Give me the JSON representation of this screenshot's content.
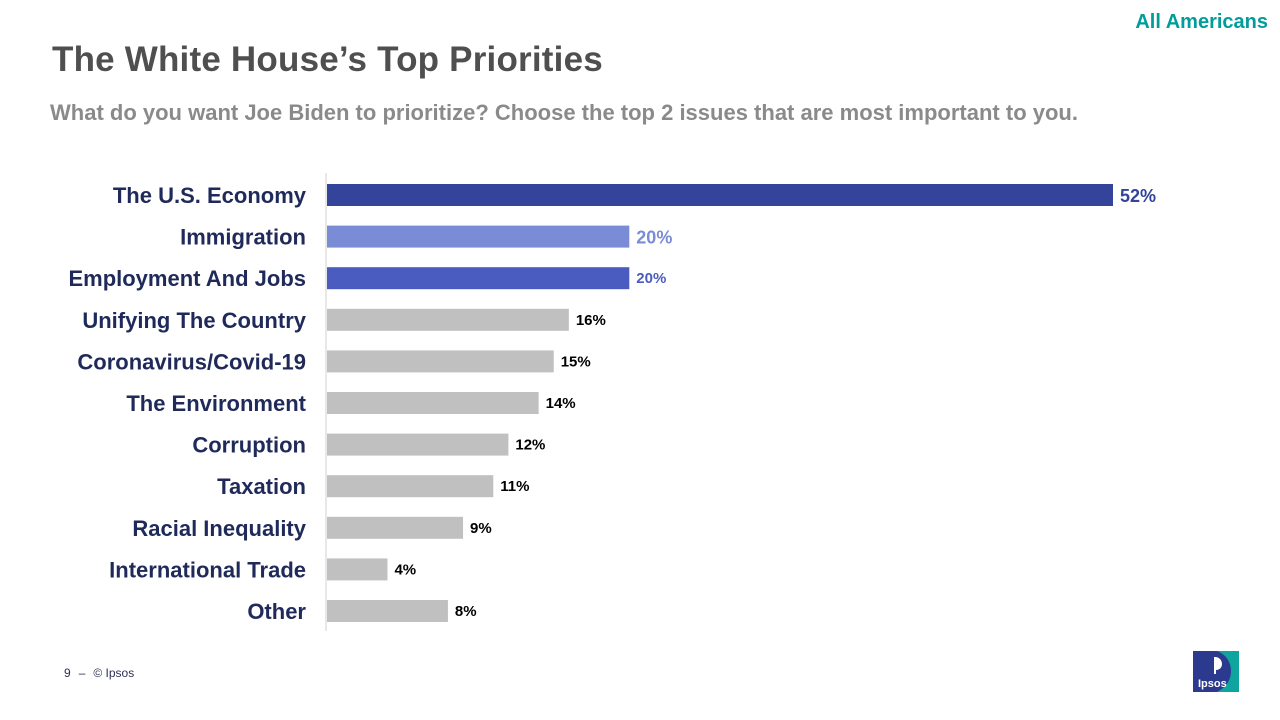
{
  "header": {
    "segment": "All Americans",
    "title": "The White House’s Top Priorities",
    "subtitle": "What do you want Joe Biden to prioritize? Choose the top 2 issues that are most important to you."
  },
  "chart_data": {
    "type": "bar",
    "orientation": "horizontal",
    "title": "",
    "xlabel": "",
    "ylabel": "",
    "xlim": [
      0,
      52
    ],
    "grid": false,
    "legend": "none",
    "categories": [
      "The U.S. Economy",
      "Immigration",
      "Employment And Jobs",
      "Unifying The Country",
      "Coronavirus/Covid-19",
      "The Environment",
      "Corruption",
      "Taxation",
      "Racial Inequality",
      "International Trade",
      "Other"
    ],
    "values": [
      52,
      20,
      20,
      16,
      15,
      14,
      12,
      11,
      9,
      4,
      8
    ],
    "value_labels": [
      "52%",
      "20%",
      "20%",
      "16%",
      "15%",
      "14%",
      "12%",
      "11%",
      "9%",
      "4%",
      "8%"
    ],
    "bar_colors": [
      "#33449a",
      "#7a8cd6",
      "#4a5cbf",
      "#c0c0c0",
      "#c0c0c0",
      "#c0c0c0",
      "#c0c0c0",
      "#c0c0c0",
      "#c0c0c0",
      "#c0c0c0",
      "#c0c0c0"
    ],
    "label_colors": [
      "#33449a",
      "#7a8cd6",
      "#4a5cbf",
      "#000000",
      "#000000",
      "#000000",
      "#000000",
      "#000000",
      "#000000",
      "#000000",
      "#000000"
    ]
  },
  "footer": {
    "page": "9",
    "separator": "–",
    "copyright": "© Ipsos"
  },
  "logo": {
    "text": "Ipsos",
    "color_primary": "#2b3a8f",
    "color_accent": "#0ea59e"
  }
}
